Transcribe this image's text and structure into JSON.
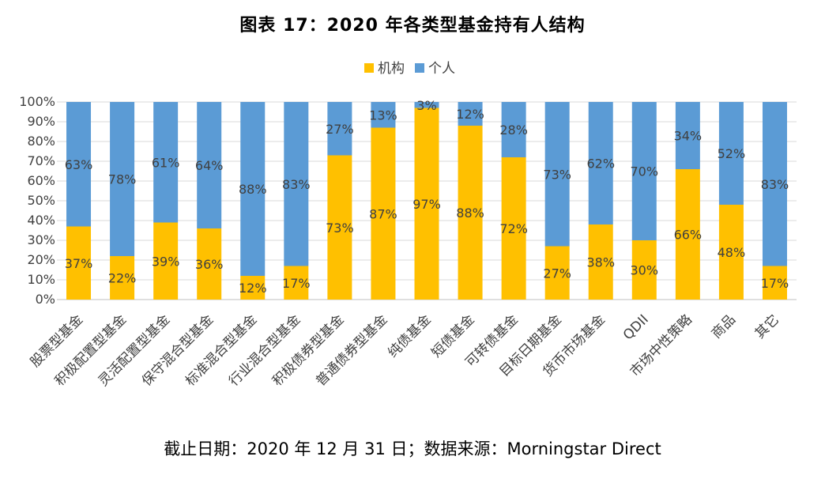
{
  "title": "图表 17：2020 年各类型基金持有人结构",
  "footnote": "截止日期：2020 年 12 月 31 日；数据来源：Morningstar Direct",
  "chart_data": {
    "type": "bar",
    "stacked": true,
    "categories": [
      "股票型基金",
      "积极配置型基金",
      "灵活配置型基金",
      "保守混合型基金",
      "标准混合型基金",
      "行业混合型基金",
      "积极债券型基金",
      "普通债券型基金",
      "纯债基金",
      "短债基金",
      "可转债基金",
      "目标日期基金",
      "货币市场基金",
      "QDII",
      "市场中性策略",
      "商品",
      "其它"
    ],
    "series": [
      {
        "name": "机构",
        "color": "#FFC000",
        "values": [
          37,
          22,
          39,
          36,
          12,
          17,
          73,
          87,
          97,
          88,
          72,
          27,
          38,
          30,
          66,
          48,
          17
        ]
      },
      {
        "name": "个人",
        "color": "#5B9BD5",
        "values": [
          63,
          78,
          61,
          64,
          88,
          83,
          27,
          13,
          3,
          12,
          28,
          73,
          62,
          70,
          34,
          52,
          83
        ]
      }
    ],
    "ylim": [
      0,
      100
    ],
    "yticks": [
      "0%",
      "10%",
      "20%",
      "30%",
      "40%",
      "50%",
      "60%",
      "70%",
      "80%",
      "90%",
      "100%"
    ],
    "legend_position": "top",
    "grid": true
  }
}
